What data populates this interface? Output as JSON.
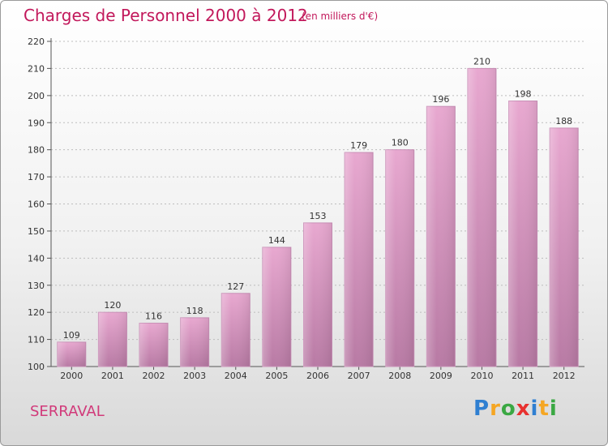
{
  "title": "Charges de Personnel 2000 à 2012",
  "subtitle": "(en milliers d'€)",
  "footer_label": "SERRAVAL",
  "logo": {
    "text": "Proxiti",
    "letters": [
      "P",
      "r",
      "o",
      "x",
      "i",
      "t",
      "i"
    ],
    "colors": [
      "#2f7fd1",
      "#f5a623",
      "#3aa843",
      "#e8312f",
      "#2f7fd1",
      "#f5a623",
      "#3aa843"
    ]
  },
  "colors": {
    "bar_top": "#e8a8d0",
    "bar_bottom": "#b87aa4",
    "title": "#c2185b",
    "grid": "#bdbdbd"
  },
  "chart_data": {
    "type": "bar",
    "categories": [
      "2000",
      "2001",
      "2002",
      "2003",
      "2004",
      "2005",
      "2006",
      "2007",
      "2008",
      "2009",
      "2010",
      "2011",
      "2012"
    ],
    "values": [
      109,
      120,
      116,
      118,
      127,
      144,
      153,
      179,
      180,
      196,
      210,
      198,
      188
    ],
    "ylim": [
      100,
      220
    ],
    "yticks": [
      100,
      110,
      120,
      130,
      140,
      150,
      160,
      170,
      180,
      190,
      200,
      210,
      220
    ],
    "grid": true,
    "data_labels": true
  }
}
